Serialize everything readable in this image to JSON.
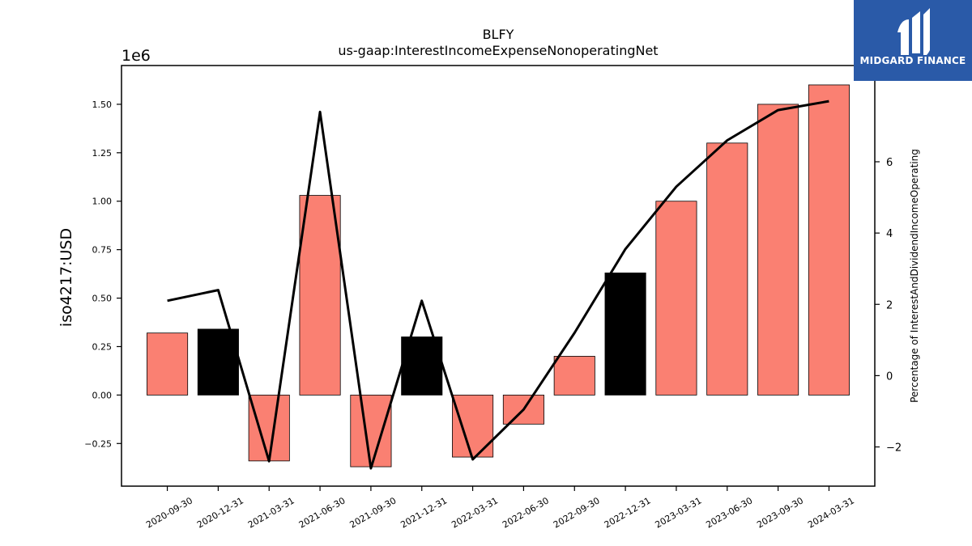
{
  "chart_data": {
    "type": "bar",
    "title": "BLFY",
    "subtitle": "us-gaap:InterestIncomeExpenseNonoperatingNet",
    "ylabel": "iso4217:USD",
    "y_offset_label": "1e6",
    "y2label": "Percentage of InterestAndDividendIncomeOperating",
    "categories": [
      "2020-09-30",
      "2020-12-31",
      "2021-03-31",
      "2021-06-30",
      "2021-09-30",
      "2021-12-31",
      "2022-03-31",
      "2022-06-30",
      "2022-09-30",
      "2022-12-31",
      "2023-03-31",
      "2023-06-30",
      "2023-09-30",
      "2024-03-31"
    ],
    "values": [
      320000,
      340000,
      -340000,
      1030000,
      -370000,
      300000,
      -320000,
      -150000,
      200000,
      630000,
      1000000,
      1300000,
      1500000,
      1600000
    ],
    "bar_colors": [
      "#fa8072",
      "#000000",
      "#fa8072",
      "#fa8072",
      "#fa8072",
      "#000000",
      "#fa8072",
      "#fa8072",
      "#fa8072",
      "#000000",
      "#fa8072",
      "#fa8072",
      "#fa8072",
      "#fa8072"
    ],
    "ylim": [
      -470000,
      1700000
    ],
    "yticks": [
      -250000,
      0,
      250000,
      500000,
      750000,
      1000000,
      1250000,
      1500000
    ],
    "ytick_labels": [
      "−0.25",
      "0.00",
      "0.25",
      "0.50",
      "0.75",
      "1.00",
      "1.25",
      "1.50"
    ],
    "line_series": {
      "values": [
        2.1,
        2.4,
        -2.4,
        7.4,
        -2.6,
        2.1,
        -2.35,
        -0.95,
        1.2,
        3.55,
        5.3,
        6.6,
        7.45,
        7.7
      ],
      "color": "#000000"
    },
    "y2lim": [
      -3.1,
      8.7
    ],
    "y2ticks": [
      -2,
      0,
      2,
      4,
      6
    ],
    "y2tick_labels": [
      "−2",
      "0",
      "2",
      "4",
      "6"
    ],
    "grid": false
  },
  "logo": {
    "text": "MIDGARD FINANCE"
  }
}
